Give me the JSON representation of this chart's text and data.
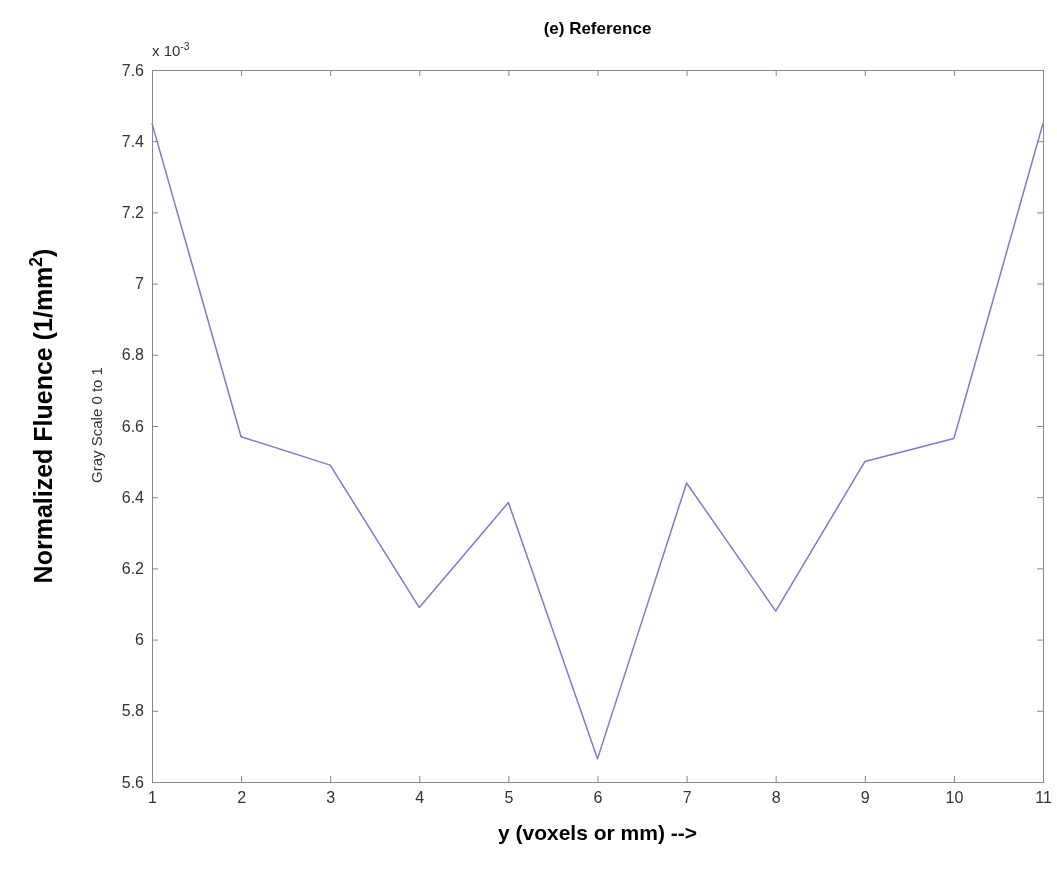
{
  "chart_data": {
    "type": "line",
    "title": "(e) Reference",
    "xlabel": "y (voxels or mm) -->",
    "ylabel": "Normalized Fluence (1/mm$^{2}$)",
    "annotations": [
      "Gray Scale 0 to 1",
      "x 10$^{-3}$"
    ],
    "x": [
      1,
      2,
      3,
      4,
      5,
      6,
      7,
      8,
      9,
      10,
      11
    ],
    "series": [
      {
        "color": "#7b7bd2",
        "values": [
          7.45,
          6.57,
          6.49,
          6.09,
          6.385,
          5.665,
          6.44,
          6.08,
          6.5,
          6.565,
          7.45
        ]
      }
    ],
    "xlim": [
      1,
      11
    ],
    "xticks": [
      1,
      2,
      3,
      4,
      5,
      6,
      7,
      8,
      9,
      10,
      11
    ],
    "ylim": [
      5.6,
      7.6
    ],
    "yticks": [
      5.6,
      5.8,
      6,
      6.2,
      6.4,
      6.6,
      6.8,
      7,
      7.2,
      7.4,
      7.6
    ],
    "grid": false,
    "marker": "none",
    "line_style": "solid"
  }
}
